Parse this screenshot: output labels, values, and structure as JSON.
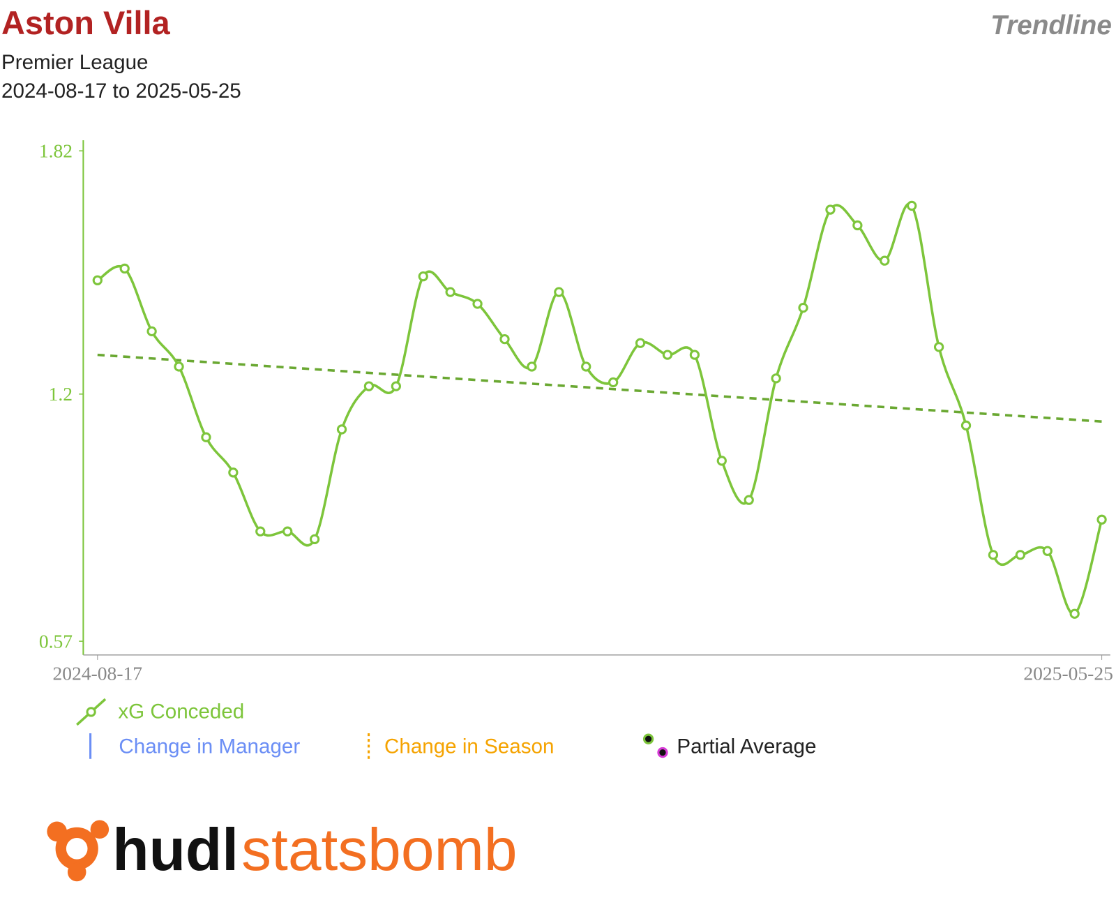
{
  "chart_data": {
    "type": "line",
    "title": "Aston Villa",
    "subtitle": "Premier League",
    "date_range": "2024-08-17 to 2025-05-25",
    "view": "Trendline",
    "categories": [
      "2024-08-17",
      null,
      null,
      null,
      null,
      null,
      null,
      null,
      null,
      null,
      null,
      null,
      null,
      null,
      null,
      null,
      null,
      null,
      null,
      null,
      null,
      null,
      null,
      null,
      null,
      null,
      null,
      null,
      null,
      null,
      null,
      null,
      null,
      null,
      null,
      null,
      null,
      "2025-05-25"
    ],
    "series": [
      {
        "name": "xG Conceded",
        "color": "#7dc53b",
        "values": [
          1.49,
          1.52,
          1.36,
          1.27,
          1.09,
          1.0,
          0.85,
          0.85,
          0.83,
          1.11,
          1.22,
          1.22,
          1.5,
          1.46,
          1.43,
          1.34,
          1.27,
          1.46,
          1.27,
          1.23,
          1.33,
          1.3,
          1.3,
          1.03,
          0.93,
          1.24,
          1.42,
          1.67,
          1.63,
          1.54,
          1.68,
          1.32,
          1.12,
          0.79,
          0.79,
          0.8,
          0.64,
          0.88
        ]
      }
    ],
    "trend": {
      "color": "#6aa832",
      "values": [
        1.3,
        1.13
      ]
    },
    "ylim": [
      0.535,
      1.847
    ],
    "yticks": [
      0.57,
      1.2,
      1.82
    ],
    "legend_extra": [
      {
        "name": "Change in Manager",
        "color": "#6b8ef5"
      },
      {
        "name": "Change in Season",
        "color": "#f5a300"
      },
      {
        "name": "Partial Average",
        "color": "#222222"
      }
    ],
    "logo": [
      "hudl",
      "statsbomb"
    ]
  }
}
